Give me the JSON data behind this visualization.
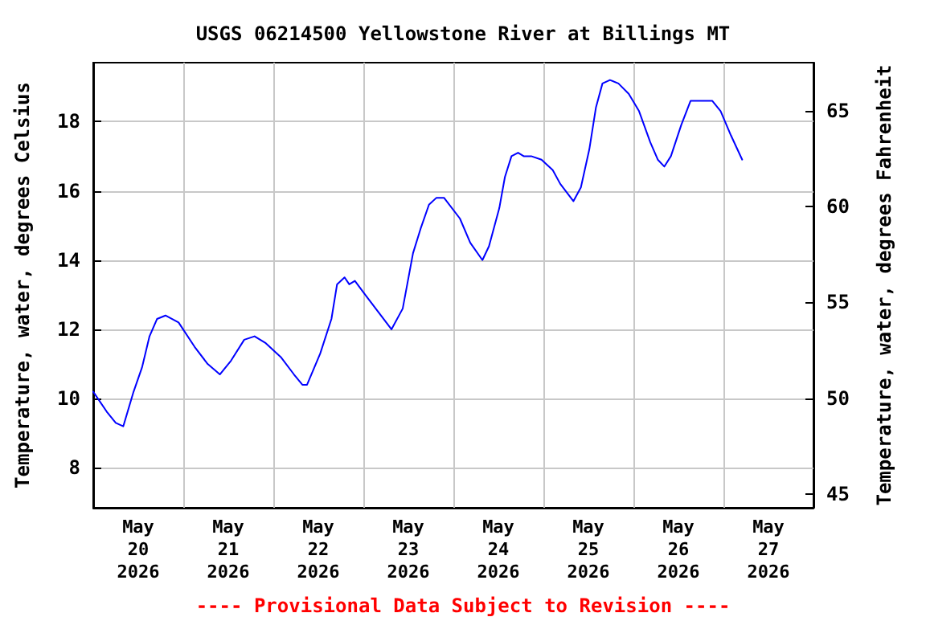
{
  "chart_data": {
    "type": "line",
    "title": "USGS 06214500 Yellowstone River at Billings MT",
    "ylabel": "Temperature, water, degrees Celsius",
    "y2label": "Temperature, water, degrees Fahrenheit",
    "annotations": [
      "---- Provisional Data Subject to Revision ----"
    ],
    "x": [
      "2026-05-19T12:00",
      "2026-05-19T15:45",
      "2026-05-19T18:00",
      "2026-05-19T20:00",
      "2026-05-19T22:45",
      "2026-05-20T01:00",
      "2026-05-20T03:00",
      "2026-05-20T05:00",
      "2026-05-20T07:15",
      "2026-05-20T10:45",
      "2026-05-20T15:00",
      "2026-05-20T18:30",
      "2026-05-20T21:45",
      "2026-05-21T00:45",
      "2026-05-21T04:15",
      "2026-05-21T07:00",
      "2026-05-21T10:00",
      "2026-05-21T14:00",
      "2026-05-21T17:30",
      "2026-05-21T19:45",
      "2026-05-21T21:00",
      "2026-05-22T00:30",
      "2026-05-22T03:30",
      "2026-05-22T05:00",
      "2026-05-22T07:00",
      "2026-05-22T08:15",
      "2026-05-22T09:45",
      "2026-05-22T12:30",
      "2026-05-22T16:00",
      "2026-05-22T19:30",
      "2026-05-22T22:30",
      "2026-05-23T01:15",
      "2026-05-23T03:15",
      "2026-05-23T05:30",
      "2026-05-23T07:30",
      "2026-05-23T09:30",
      "2026-05-23T13:45",
      "2026-05-23T16:30",
      "2026-05-23T19:45",
      "2026-05-23T21:30",
      "2026-05-24T00:15",
      "2026-05-24T01:45",
      "2026-05-24T03:30",
      "2026-05-24T05:15",
      "2026-05-24T06:45",
      "2026-05-24T08:45",
      "2026-05-24T11:30",
      "2026-05-24T14:30",
      "2026-05-24T16:30",
      "2026-05-24T20:00",
      "2026-05-24T22:00",
      "2026-05-25T00:15",
      "2026-05-25T02:00",
      "2026-05-25T03:45",
      "2026-05-25T05:45",
      "2026-05-25T08:00",
      "2026-05-25T10:45",
      "2026-05-25T13:30",
      "2026-05-25T16:30",
      "2026-05-25T18:30",
      "2026-05-25T20:15",
      "2026-05-25T22:00",
      "2026-05-26T00:45",
      "2026-05-26T03:15",
      "2026-05-26T06:30",
      "2026-05-26T09:00",
      "2026-05-26T11:15",
      "2026-05-26T14:00",
      "2026-05-26T17:00"
    ],
    "series": [
      {
        "color": "#0000ff",
        "values": [
          10.2,
          9.6,
          9.3,
          9.2,
          10.2,
          10.9,
          11.8,
          12.3,
          12.4,
          12.2,
          11.5,
          11.0,
          10.7,
          11.1,
          11.7,
          11.8,
          11.6,
          11.2,
          10.7,
          10.4,
          10.4,
          11.3,
          12.3,
          13.3,
          13.5,
          13.3,
          13.4,
          13.0,
          12.5,
          12.0,
          12.6,
          14.2,
          14.9,
          15.6,
          15.8,
          15.8,
          15.2,
          14.5,
          14.0,
          14.4,
          15.5,
          16.4,
          17.0,
          17.1,
          17.0,
          17.0,
          16.9,
          16.6,
          16.2,
          15.7,
          16.1,
          17.2,
          18.4,
          19.1,
          19.2,
          19.1,
          18.8,
          18.3,
          17.4,
          16.9,
          16.7,
          17.0,
          17.9,
          18.6,
          18.6,
          18.6,
          18.3,
          17.6,
          16.9
        ]
      }
    ],
    "xlim": [
      "2026-05-19T12:00",
      "2026-05-27T12:00"
    ],
    "xticks": [
      {
        "value": "2026-05-20",
        "label": "May\n20\n2026"
      },
      {
        "value": "2026-05-21",
        "label": "May\n21\n2026"
      },
      {
        "value": "2026-05-22",
        "label": "May\n22\n2026"
      },
      {
        "value": "2026-05-23",
        "label": "May\n23\n2026"
      },
      {
        "value": "2026-05-24",
        "label": "May\n24\n2026"
      },
      {
        "value": "2026-05-25",
        "label": "May\n25\n2026"
      },
      {
        "value": "2026-05-26",
        "label": "May\n26\n2026"
      },
      {
        "value": "2026-05-27",
        "label": "May\n27\n2026"
      },
      {
        "value": "2026-05-20T12:00",
        "label": null
      },
      {
        "value": "2026-05-21T12:00",
        "label": null
      },
      {
        "value": "2026-05-22T12:00",
        "label": null
      },
      {
        "value": "2026-05-23T12:00",
        "label": null
      },
      {
        "value": "2026-05-24T12:00",
        "label": null
      },
      {
        "value": "2026-05-25T12:00",
        "label": null
      },
      {
        "value": "2026-05-26T12:00",
        "label": null
      }
    ],
    "ylim": [
      6.85,
      19.7
    ],
    "yticks": [
      8,
      10,
      12,
      14,
      16,
      18
    ],
    "y2lim": [
      44.3,
      67.5
    ],
    "y2ticks": [
      45,
      50,
      55,
      60,
      65
    ],
    "grid": true,
    "marker": "none",
    "line_style": "solid"
  }
}
